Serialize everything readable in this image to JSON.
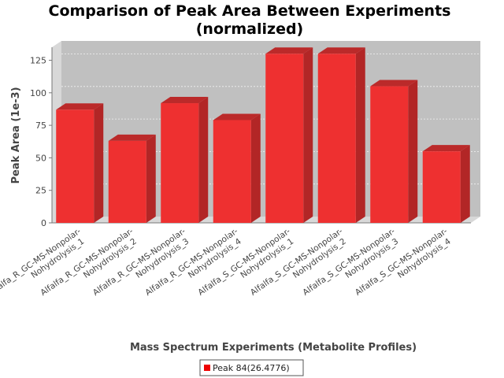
{
  "chart_data": {
    "type": "bar",
    "title_lines": [
      "Comparison of Peak Area Between Experiments",
      "(normalized)"
    ],
    "xlabel": "Mass Spectrum Experiments (Metabolite Profiles)",
    "ylabel": "Peak Area (1e-3)",
    "ylim": [
      0,
      135
    ],
    "yticks": [
      0,
      25,
      50,
      75,
      100,
      125
    ],
    "grid": true,
    "legend_position": "bottom",
    "colors": {
      "bar_front": "#ee3030",
      "bar_top": "#bb2a2a",
      "bar_side": "#b22626",
      "plot_bg": "#c0c0c0",
      "wall": "#d8d8d8"
    },
    "categories": [
      [
        "Alfalfa_R_GC-MS-Nonpolar-",
        "Nohydrolysis_1"
      ],
      [
        "Alfalfa_R_GC-MS-Nonpolar-",
        "Nohydrolysis_2"
      ],
      [
        "Alfalfa_R_GC-MS-Nonpolar-",
        "Nohydrolysis_3"
      ],
      [
        "Alfalfa_R_GC-MS-Nonpolar-",
        "Nohydrolysis_4"
      ],
      [
        "Alfalfa_S_GC-MS-Nonpolar-",
        "Nohydrolysis_1"
      ],
      [
        "Alfalfa_S_GC-MS-Nonpolar-",
        "Nohydrolysis_2"
      ],
      [
        "Alfalfa_S_GC-MS-Nonpolar-",
        "Nohydrolysis_3"
      ],
      [
        "Alfalfa_S_GC-MS-Nonpolar-",
        "Nohydrolysis_4"
      ]
    ],
    "series": [
      {
        "name": "Peak 84(26.4776)",
        "values": [
          87,
          63,
          92,
          79,
          130,
          130,
          105,
          55
        ]
      }
    ]
  }
}
